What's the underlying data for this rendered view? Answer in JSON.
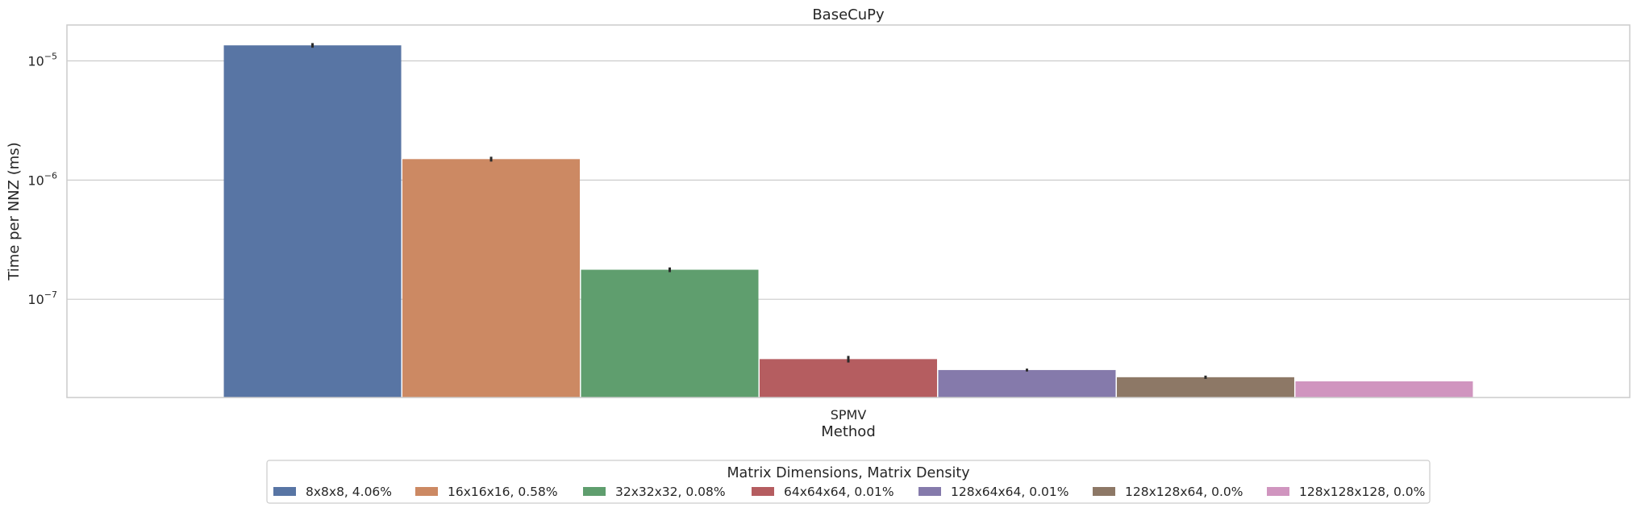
{
  "chart_data": {
    "type": "bar",
    "title": "BaseCuPy",
    "xlabel": "Method",
    "ylabel": "Time per NNZ (ms)",
    "yscale": "log",
    "ylim": [
      1.5e-08,
      2e-05
    ],
    "yticks": [
      {
        "value": 1e-05,
        "base": "10",
        "exp": "−5"
      },
      {
        "value": 1e-06,
        "base": "10",
        "exp": "−6"
      },
      {
        "value": 1e-07,
        "base": "10",
        "exp": "−7"
      }
    ],
    "grid": "horizontal",
    "categories": [
      "SPMV"
    ],
    "legend": {
      "title": "Matrix Dimensions, Matrix Density",
      "placement": "bottom-center"
    },
    "series": [
      {
        "name": "8x8x8, 4.06%",
        "values": [
          1.35e-05
        ],
        "err": [
          6e-07
        ],
        "color": "#5875a4"
      },
      {
        "name": "16x16x16, 0.58%",
        "values": [
          1.5e-06
        ],
        "err": [
          7e-08
        ],
        "color": "#cc8963"
      },
      {
        "name": "32x32x32, 0.08%",
        "values": [
          1.77e-07
        ],
        "err": [
          8e-09
        ],
        "color": "#5f9e6e"
      },
      {
        "name": "64x64x64, 0.01%",
        "values": [
          3.15e-08
        ],
        "err": [
          2e-09
        ],
        "color": "#b55d60"
      },
      {
        "name": "128x64x64, 0.01%",
        "values": [
          2.55e-08
        ],
        "err": [
          7e-10
        ],
        "color": "#857aab"
      },
      {
        "name": "128x128x64, 0.0%",
        "values": [
          2.22e-08
        ],
        "err": [
          7e-10
        ],
        "color": "#8d7866"
      },
      {
        "name": "128x128x128, 0.0%",
        "values": [
          2.05e-08
        ],
        "err": [
          0.0
        ],
        "color": "#d095bf"
      }
    ]
  }
}
